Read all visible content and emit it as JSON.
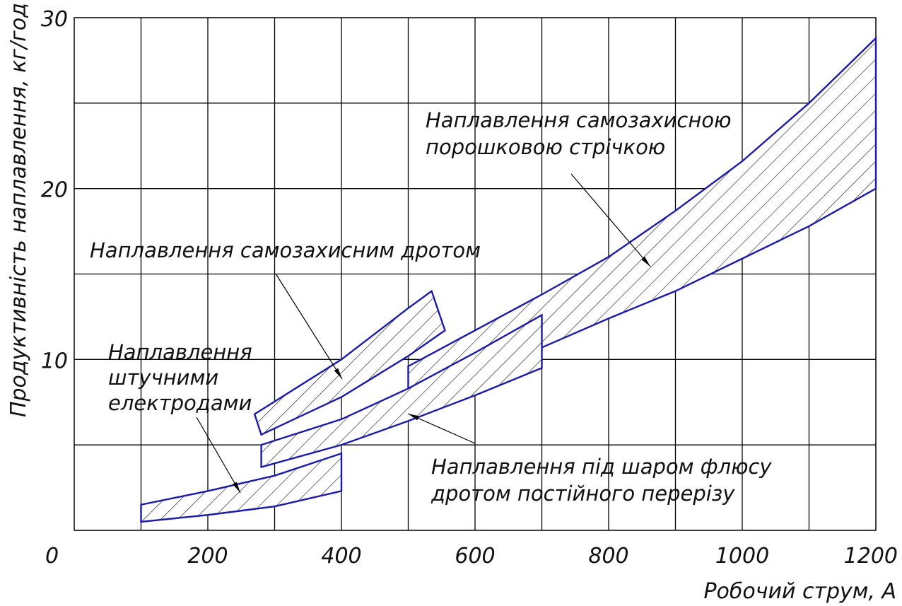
{
  "chart_data": {
    "type": "area",
    "xlabel": "Робочий струм, А",
    "ylabel": "Продуктивність наплавлення, кг/год",
    "xlim": [
      0,
      1200
    ],
    "ylim": [
      0,
      30
    ],
    "x_ticks": [
      "0",
      "200",
      "400",
      "600",
      "800",
      "1000",
      "1200"
    ],
    "y_ticks": [
      "10",
      "20",
      "30"
    ],
    "grid": true,
    "band_color": "#1a1aa6",
    "series": [
      {
        "name": "Наплавлення штучними електродами",
        "upper": [
          [
            100,
            1.5
          ],
          [
            200,
            2.3
          ],
          [
            300,
            3.2
          ],
          [
            400,
            4.5
          ]
        ],
        "lower": [
          [
            100,
            0.5
          ],
          [
            200,
            0.9
          ],
          [
            300,
            1.4
          ],
          [
            400,
            2.3
          ]
        ]
      },
      {
        "name": "Наплавлення самозахисним дротом",
        "upper": [
          [
            270,
            6.8
          ],
          [
            400,
            10.0
          ],
          [
            500,
            13.0
          ],
          [
            535,
            14.0
          ],
          [
            555,
            11.7
          ]
        ],
        "lower": [
          [
            280,
            5.6
          ],
          [
            400,
            7.8
          ],
          [
            500,
            10.2
          ],
          [
            555,
            11.7
          ]
        ]
      },
      {
        "name": "Наплавлення самозахисною порошковою стрічкою",
        "upper": [
          [
            500,
            9.6
          ],
          [
            700,
            13.8
          ],
          [
            800,
            16.0
          ],
          [
            900,
            18.7
          ],
          [
            1000,
            21.6
          ],
          [
            1100,
            25.0
          ],
          [
            1200,
            28.8
          ]
        ],
        "lower": [
          [
            500,
            7.8
          ],
          [
            700,
            10.7
          ],
          [
            800,
            12.4
          ],
          [
            900,
            14.0
          ],
          [
            1000,
            15.9
          ],
          [
            1100,
            17.8
          ],
          [
            1200,
            20.0
          ]
        ]
      },
      {
        "name": "Наплавлення під шаром флюсу дротом постійного перерізу",
        "upper": [
          [
            280,
            5.0
          ],
          [
            400,
            6.5
          ],
          [
            500,
            8.3
          ],
          [
            600,
            10.4
          ],
          [
            700,
            12.6
          ]
        ],
        "lower": [
          [
            280,
            3.7
          ],
          [
            400,
            5.0
          ],
          [
            500,
            6.4
          ],
          [
            600,
            7.9
          ],
          [
            700,
            9.5
          ]
        ]
      }
    ],
    "annotations": [
      {
        "lines": [
          "Наплавлення",
          "штучними",
          "електродами"
        ]
      },
      {
        "lines": [
          "Наплавлення самозахисним дротом"
        ]
      },
      {
        "lines": [
          "Наплавлення самозахисною",
          "порошковою стрічкою"
        ]
      },
      {
        "lines": [
          "Наплавлення під шаром флюсу",
          "дротом постійного перерізу"
        ]
      }
    ]
  }
}
